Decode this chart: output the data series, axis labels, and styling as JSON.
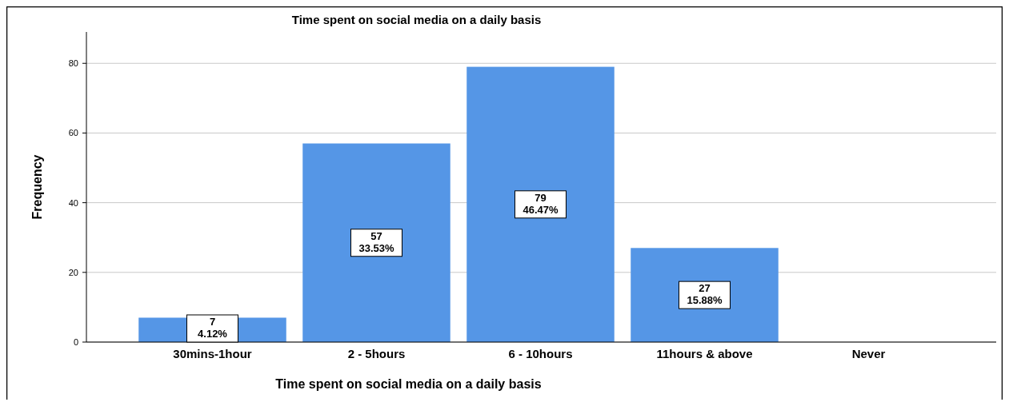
{
  "chart_data": {
    "type": "bar",
    "title": "Time spent on social media on a daily basis",
    "xlabel": "Time spent on social media on a daily basis",
    "ylabel": "Frequency",
    "categories": [
      "30mins-1hour",
      "2 - 5hours",
      "6 - 10hours",
      "11hours & above",
      "Never"
    ],
    "values": [
      7,
      57,
      79,
      27,
      null
    ],
    "value_labels": [
      "7\n4.12%",
      "57\n33.53%",
      "79\n46.47%",
      "27\n15.88%",
      null
    ],
    "color": "#5596e6",
    "ylim": [
      0,
      89
    ],
    "yticks": [
      0,
      20,
      40,
      60,
      80
    ],
    "grid": "y"
  }
}
